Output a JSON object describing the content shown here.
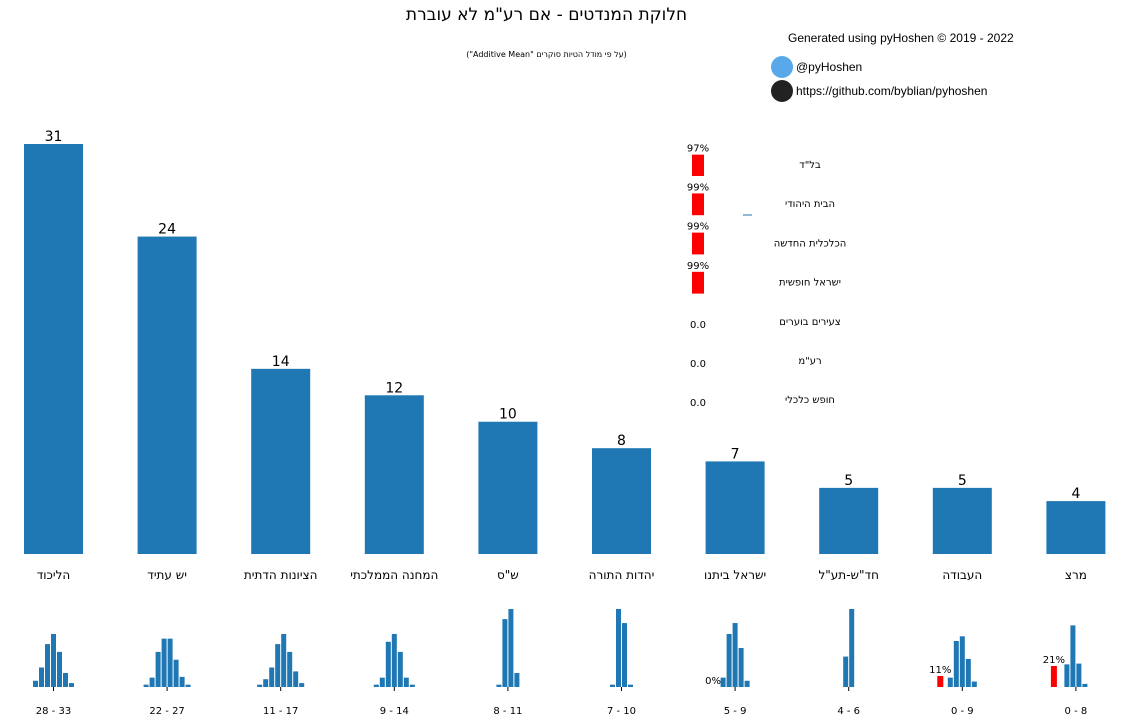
{
  "header": {
    "title": "חלוקת המנדטים - אם רע\"מ לא עוברת",
    "subtitle": "(על פי מודל הטיות סוקרים \"Additive Mean\")",
    "credit": "Generated using pyHoshen © 2019 - 2022",
    "twitter": "@pyHoshen",
    "github": "https://github.com/byblian/pyhoshen"
  },
  "colors": {
    "bar": "#1f77b4",
    "threshold": "#ff0000",
    "text": "#000000"
  },
  "chart_data": {
    "type": "bar",
    "title": "חלוקת המנדטים - אם רע\"מ לא עוברת",
    "subtitle": "(על פי מודל הטיות סוקרים \"Additive Mean\")",
    "categories": [
      "הליכוד",
      "יש עתיד",
      "הציונות הדתית",
      "המחנה הממלכתי",
      "ש\"ס",
      "יהדות התורה",
      "ישראל ביתנו",
      "חד\"ש-תע\"ל",
      "העבודה",
      "מרצ"
    ],
    "values": [
      31,
      24,
      14,
      12,
      10,
      8,
      7,
      5,
      5,
      4
    ],
    "ylim": [
      0,
      31
    ],
    "ranges": [
      "28 - 33",
      "22 - 27",
      "11 - 17",
      "9 - 14",
      "8 - 11",
      "7 - 10",
      "5 - 9",
      "4 - 6",
      "0 - 9",
      "0 - 8"
    ],
    "distributions": [
      [
        0.08,
        0.25,
        0.55,
        0.68,
        0.45,
        0.18,
        0.05
      ],
      [
        0.03,
        0.12,
        0.45,
        0.62,
        0.62,
        0.35,
        0.13,
        0.03
      ],
      [
        0.03,
        0.1,
        0.25,
        0.55,
        0.68,
        0.45,
        0.2,
        0.05
      ],
      [
        0.03,
        0.12,
        0.58,
        0.68,
        0.45,
        0.12,
        0.03
      ],
      [
        0.03,
        0.87,
        1.0,
        0.18
      ],
      [
        0.03,
        1.0,
        0.82,
        0.03
      ],
      [
        0.12,
        0.68,
        0.82,
        0.5,
        0.08
      ],
      [
        0.39,
        1.0
      ],
      [
        0.12,
        0.59,
        0.65,
        0.36,
        0.07
      ],
      [
        0.29,
        0.79,
        0.3,
        0.04
      ]
    ],
    "below_threshold": [
      null,
      null,
      null,
      null,
      null,
      null,
      {
        "label": "0%",
        "value": 0
      },
      null,
      {
        "label": "11%",
        "value": 0.11
      },
      {
        "label": "21%",
        "value": 0.21
      }
    ],
    "minor_parties": [
      {
        "name": "בל\"ד",
        "label": "97%",
        "value": 0.97
      },
      {
        "name": "הבית היהודי",
        "label": "99%",
        "value": 0.99
      },
      {
        "name": "הכלכלית החדשה",
        "label": "99%",
        "value": 0.99
      },
      {
        "name": "ישראל חופשית",
        "label": "99%",
        "value": 0.99
      },
      {
        "name": "צעירים בוערים",
        "label": "0.0",
        "value": 0
      },
      {
        "name": "רע\"מ",
        "label": "0.0",
        "value": 0
      },
      {
        "name": "חופש כלכלי",
        "label": "0.0",
        "value": 0
      }
    ]
  }
}
